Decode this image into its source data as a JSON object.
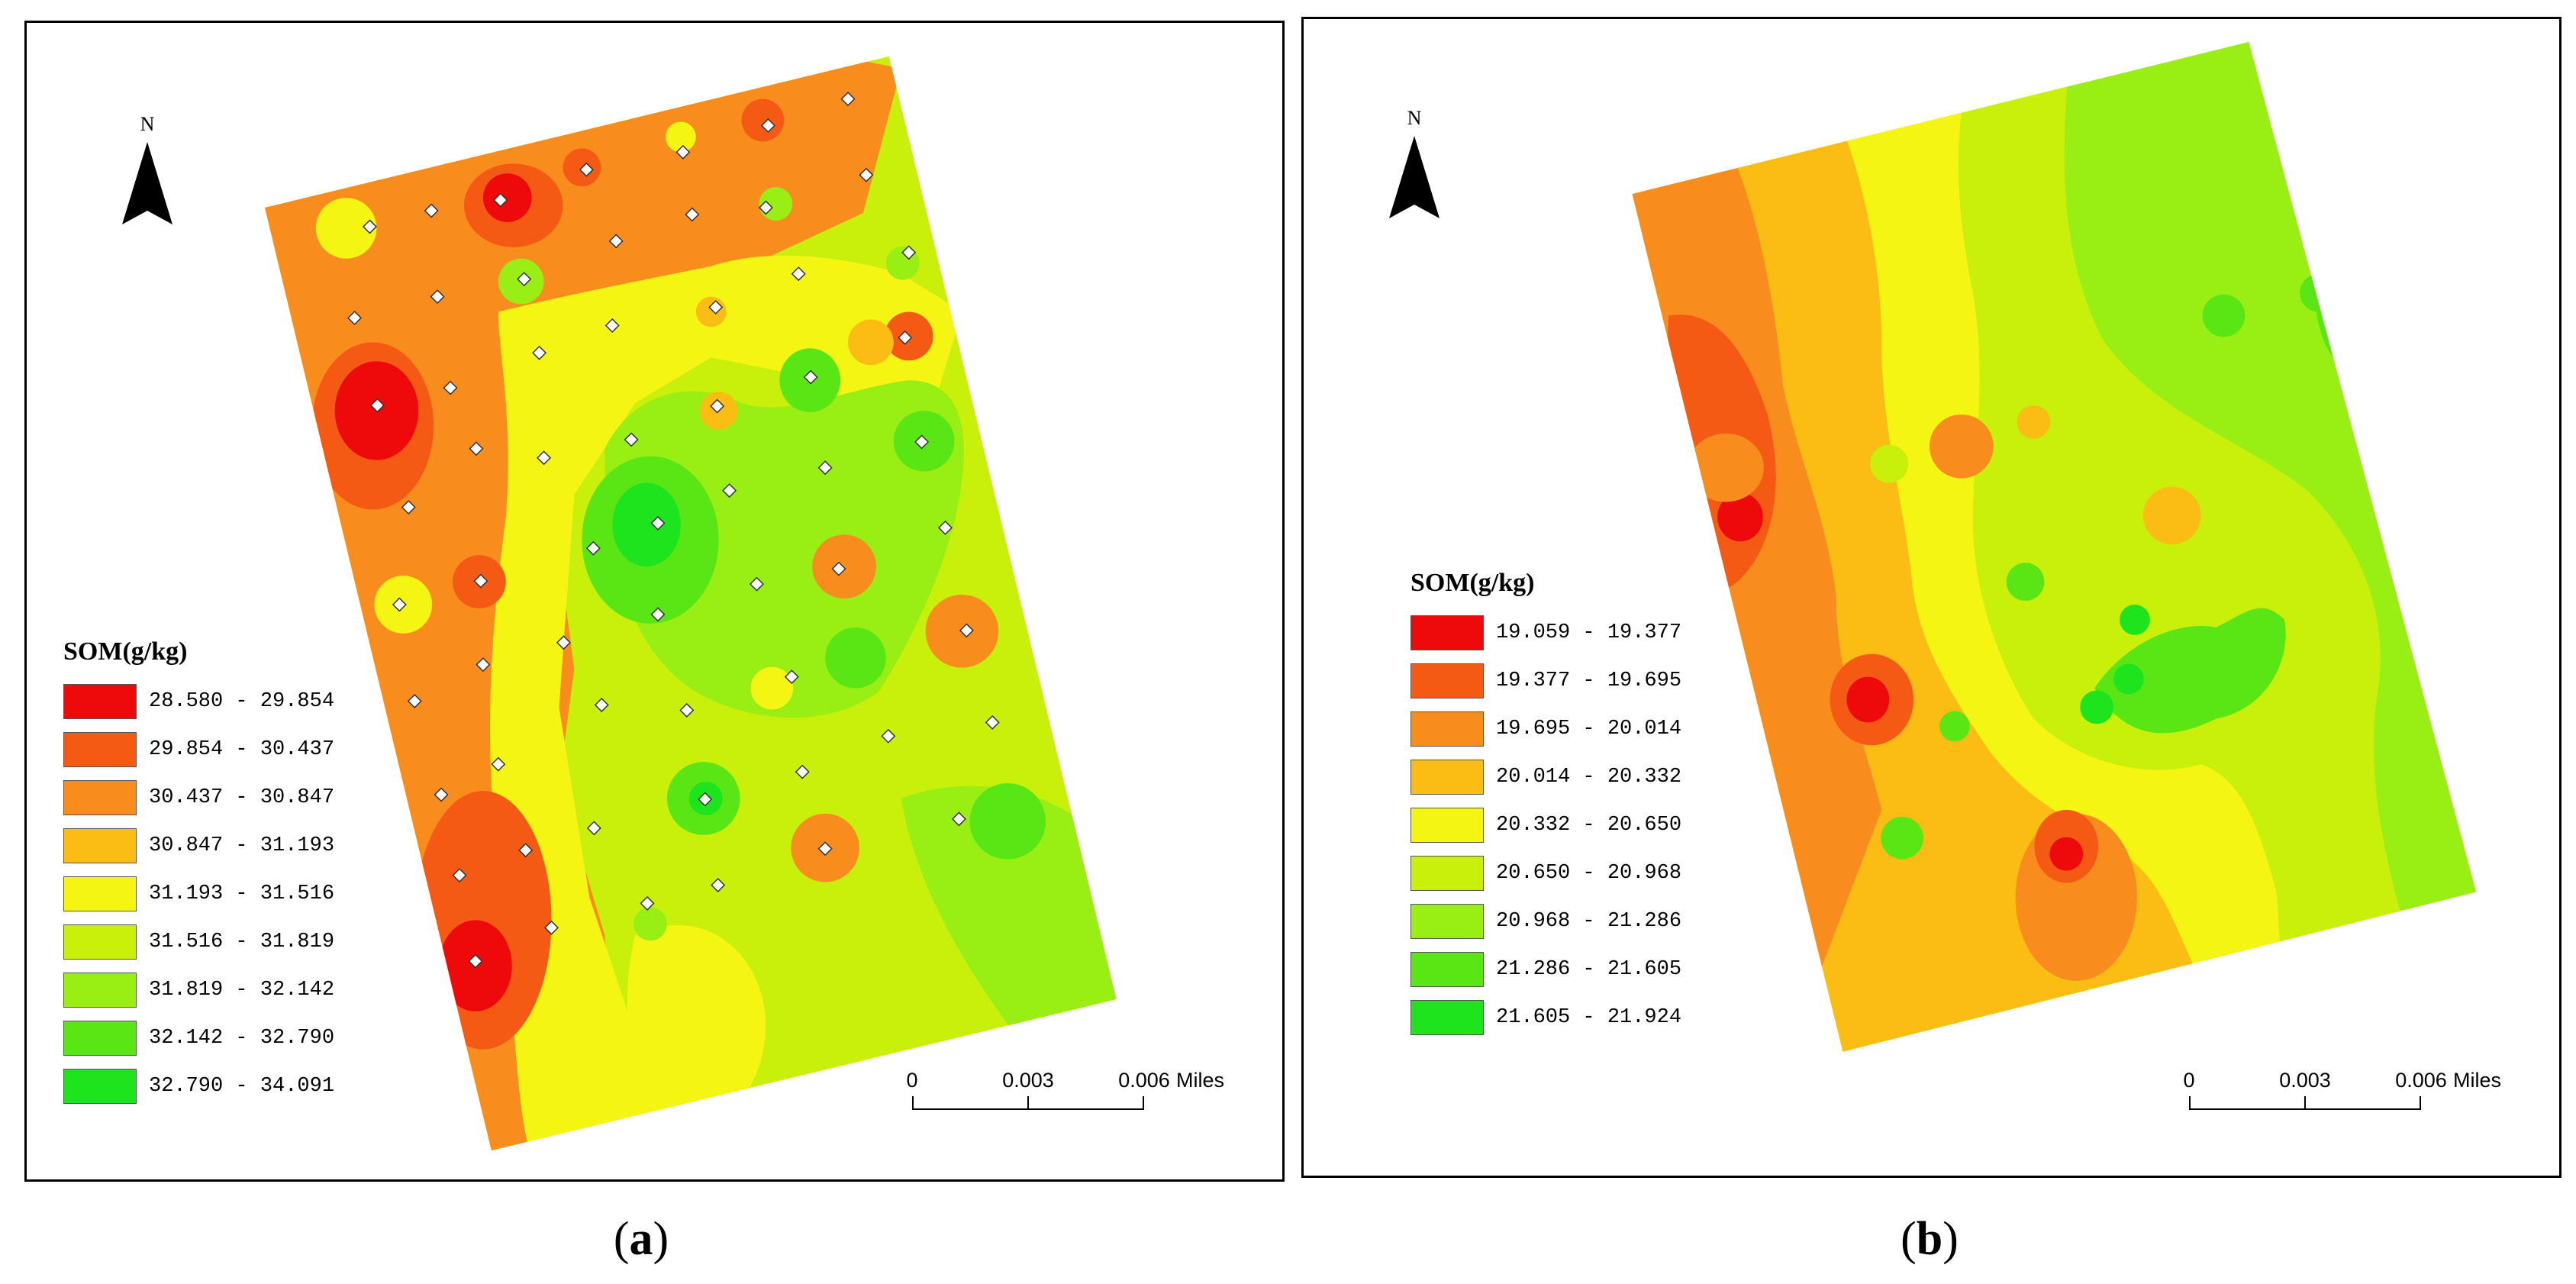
{
  "panels": [
    {
      "id": "a",
      "caption": "a",
      "north_label": "N",
      "legend": {
        "title": "SOM(g/kg)",
        "classes": [
          {
            "label": "28.580 - 29.854",
            "color": "#ee0a0a"
          },
          {
            "label": "29.854 - 30.437",
            "color": "#f55a14"
          },
          {
            "label": "30.437 - 30.847",
            "color": "#f88c1c"
          },
          {
            "label": "30.847 - 31.193",
            "color": "#fbbd14"
          },
          {
            "label": "31.193 - 31.516",
            "color": "#f5f514"
          },
          {
            "label": "31.516 - 31.819",
            "color": "#c8f00a"
          },
          {
            "label": "31.819 - 32.142",
            "color": "#99ee14"
          },
          {
            "label": "32.142 - 32.790",
            "color": "#5ae614"
          },
          {
            "label": "32.790 - 34.091",
            "color": "#1de41d"
          }
        ]
      },
      "scale_bar": {
        "ticks": [
          "0",
          "0.003",
          "0.006"
        ],
        "units": "Miles"
      }
    },
    {
      "id": "b",
      "caption": "b",
      "north_label": "N",
      "legend": {
        "title": "SOM(g/kg)",
        "classes": [
          {
            "label": "19.059 - 19.377",
            "color": "#ee0a0a"
          },
          {
            "label": "19.377 - 19.695",
            "color": "#f55a14"
          },
          {
            "label": "19.695 - 20.014",
            "color": "#f88c1c"
          },
          {
            "label": "20.014 - 20.332",
            "color": "#fbbd14"
          },
          {
            "label": "20.332 - 20.650",
            "color": "#f5f514"
          },
          {
            "label": "20.650 - 20.968",
            "color": "#c8f00a"
          },
          {
            "label": "20.968 - 21.286",
            "color": "#99ee14"
          },
          {
            "label": "21.286 - 21.605",
            "color": "#5ae614"
          },
          {
            "label": "21.605 - 21.924",
            "color": "#1de41d"
          }
        ]
      },
      "scale_bar": {
        "ticks": [
          "0",
          "0.003",
          "0.006"
        ],
        "units": "Miles"
      }
    }
  ]
}
